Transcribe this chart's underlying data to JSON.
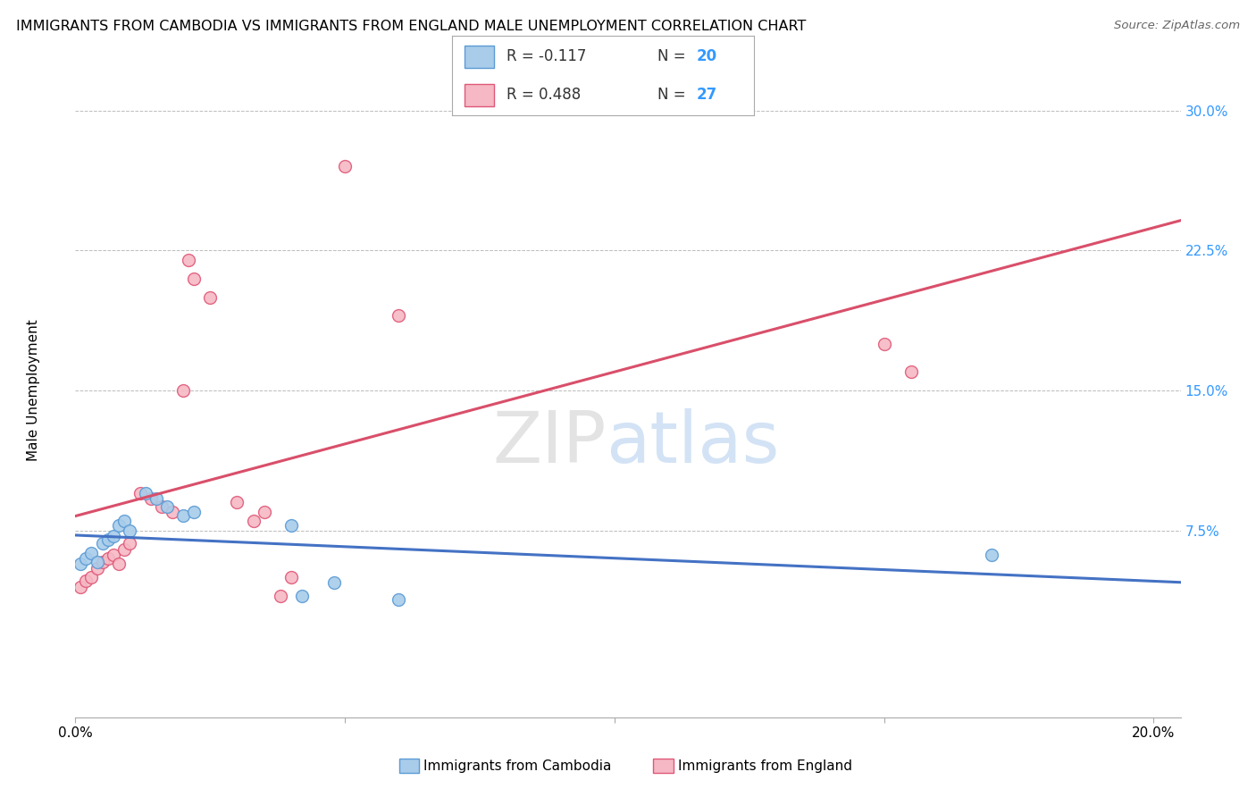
{
  "title": "IMMIGRANTS FROM CAMBODIA VS IMMIGRANTS FROM ENGLAND MALE UNEMPLOYMENT CORRELATION CHART",
  "source": "Source: ZipAtlas.com",
  "ylabel": "Male Unemployment",
  "xlim": [
    0.0,
    0.205
  ],
  "ylim": [
    -0.025,
    0.325
  ],
  "xticks": [
    0.0,
    0.05,
    0.1,
    0.15,
    0.2
  ],
  "xtick_labels": [
    "0.0%",
    "",
    "",
    "",
    "20.0%"
  ],
  "ytick_right": [
    0.075,
    0.15,
    0.225,
    0.3
  ],
  "ytick_right_labels": [
    "7.5%",
    "15.0%",
    "22.5%",
    "30.0%"
  ],
  "cambodia_color": "#A8CCEA",
  "cambodia_edge": "#5B9BD5",
  "england_color": "#F5B8C4",
  "england_edge": "#E05878",
  "cambodia_line_color": "#4472C4",
  "england_line_color": "#D94F6A",
  "cambodia_R": -0.117,
  "cambodia_N": 20,
  "england_R": 0.488,
  "england_N": 27,
  "cambodia_x": [
    0.001,
    0.002,
    0.003,
    0.004,
    0.005,
    0.006,
    0.007,
    0.008,
    0.009,
    0.01,
    0.013,
    0.015,
    0.017,
    0.02,
    0.022,
    0.04,
    0.042,
    0.048,
    0.06,
    0.17
  ],
  "cambodia_y": [
    0.057,
    0.06,
    0.063,
    0.058,
    0.068,
    0.07,
    0.072,
    0.078,
    0.08,
    0.075,
    0.095,
    0.092,
    0.088,
    0.083,
    0.085,
    0.078,
    0.04,
    0.047,
    0.038,
    0.062
  ],
  "england_x": [
    0.001,
    0.002,
    0.003,
    0.004,
    0.005,
    0.006,
    0.007,
    0.008,
    0.009,
    0.01,
    0.012,
    0.014,
    0.016,
    0.018,
    0.02,
    0.021,
    0.022,
    0.025,
    0.03,
    0.033,
    0.035,
    0.038,
    0.04,
    0.05,
    0.06,
    0.15,
    0.155
  ],
  "england_y": [
    0.045,
    0.048,
    0.05,
    0.055,
    0.058,
    0.06,
    0.062,
    0.057,
    0.065,
    0.068,
    0.095,
    0.092,
    0.088,
    0.085,
    0.15,
    0.22,
    0.21,
    0.2,
    0.09,
    0.08,
    0.085,
    0.04,
    0.05,
    0.27,
    0.19,
    0.175,
    0.16
  ],
  "watermark_color_ZIP": "#C8C8C8",
  "watermark_color_atlas": "#A8C8E8",
  "background_color": "#FFFFFF",
  "grid_color": "#BBBBBB",
  "title_fontsize": 11.5,
  "axis_label_fontsize": 11,
  "tick_fontsize": 11,
  "marker_size": 100,
  "legend_R_color": "#333333",
  "legend_N_color": "#3399FF"
}
